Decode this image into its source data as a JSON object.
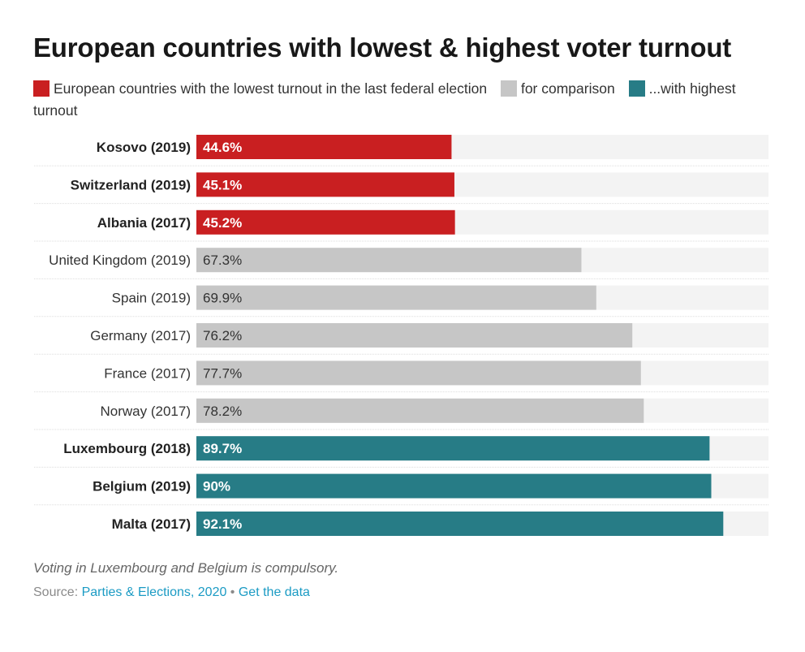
{
  "title": "European countries with lowest & highest voter turnout",
  "legend": [
    {
      "label": "European countries with the lowest turnout in the last federal election",
      "color": "#c91f21",
      "group": "lowest"
    },
    {
      "label": "for comparison",
      "color": "#c6c6c6",
      "group": "comparison"
    },
    {
      "label": "...with highest turnout",
      "color": "#277c86",
      "group": "highest"
    }
  ],
  "note": "Voting in Luxembourg and Belgium is compulsory.",
  "source": {
    "prefix": "Source: ",
    "link_label": "Parties & Elections, 2020",
    "separator": " • ",
    "data_link_label": "Get the data"
  },
  "colors": {
    "lowest": "#c91f21",
    "comparison": "#c6c6c6",
    "highest": "#277c86",
    "track": "#f3f3f3",
    "divider": "#dddddd",
    "label_dark": "#222222",
    "label_regular": "#333333",
    "value_on_dark": "#ffffff",
    "value_on_light": "#333333"
  },
  "chart_data": {
    "type": "bar",
    "orientation": "horizontal",
    "title": "European countries with lowest & highest voter turnout",
    "xlabel": "",
    "ylabel": "",
    "xlim": [
      0,
      100
    ],
    "grid": false,
    "legend_position": "top",
    "categories": [
      "Kosovo (2019)",
      "Switzerland (2019)",
      "Albania (2017)",
      "United Kingdom (2019)",
      "Spain (2019)",
      "Germany (2017)",
      "France (2017)",
      "Norway (2017)",
      "Luxembourg (2018)",
      "Belgium (2019)",
      "Malta (2017)"
    ],
    "values": [
      44.6,
      45.1,
      45.2,
      67.3,
      69.9,
      76.2,
      77.7,
      78.2,
      89.7,
      90,
      92.1
    ],
    "value_labels": [
      "44.6%",
      "45.1%",
      "45.2%",
      "67.3%",
      "69.9%",
      "76.2%",
      "77.7%",
      "78.2%",
      "89.7%",
      "90%",
      "92.1%"
    ],
    "groups": [
      "lowest",
      "lowest",
      "lowest",
      "comparison",
      "comparison",
      "comparison",
      "comparison",
      "comparison",
      "highest",
      "highest",
      "highest"
    ]
  }
}
